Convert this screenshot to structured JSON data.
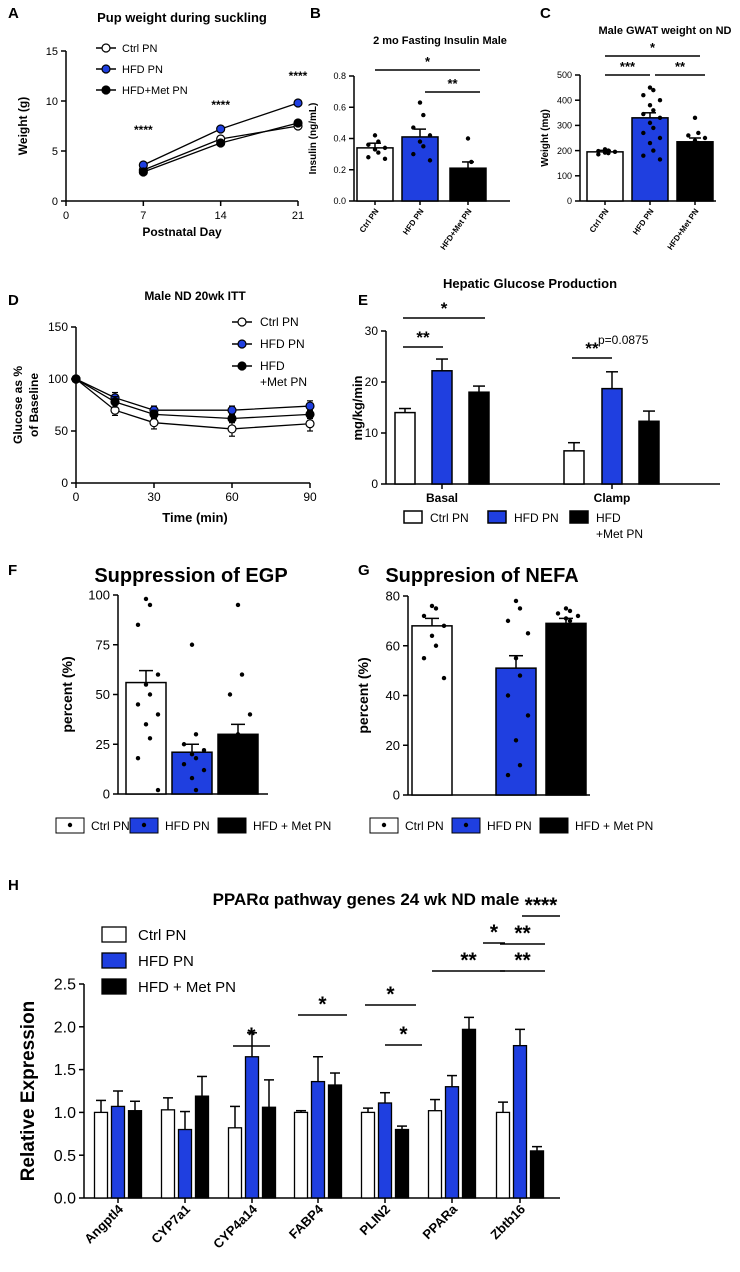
{
  "colors": {
    "ctrl": "#ffffff",
    "hfd": "#1f3fe0",
    "met": "#000000"
  },
  "chart_data": [
    {
      "panel": "A",
      "type": "line",
      "title": "Pup weight during suckling",
      "xlabel": "Postnatal Day",
      "ylabel": "Weight (g)",
      "xlim": [
        0,
        21
      ],
      "ylim": [
        0,
        15
      ],
      "xticks": [
        0,
        7,
        14,
        21
      ],
      "yticks": [
        0,
        5,
        10,
        15
      ],
      "x": [
        7,
        14,
        21
      ],
      "series": [
        {
          "name": "Ctrl PN",
          "values": [
            3.1,
            6.2,
            7.5
          ]
        },
        {
          "name": "HFD PN",
          "values": [
            3.6,
            7.2,
            9.8
          ]
        },
        {
          "name": "HFD+Met PN",
          "values": [
            2.9,
            5.8,
            7.8
          ]
        }
      ],
      "legend": [
        "Ctrl PN",
        "HFD PN",
        "HFD+Met PN"
      ],
      "annotations": [
        "****",
        "****",
        "****"
      ]
    },
    {
      "panel": "B",
      "type": "bar",
      "title": "2 mo Fasting Insulin Male",
      "ylabel": "Insulin (ng/mL)",
      "ylim": [
        0,
        0.8
      ],
      "yticks": [
        0.0,
        0.2,
        0.4,
        0.6,
        0.8
      ],
      "categories": [
        "Ctrl PN",
        "HFD PN",
        "HFD+Met PN"
      ],
      "values": [
        0.34,
        0.41,
        0.21
      ],
      "errors": [
        0.03,
        0.05,
        0.04
      ],
      "points": [
        [
          0.42,
          0.38,
          0.36,
          0.34,
          0.33,
          0.31,
          0.28,
          0.27
        ],
        [
          0.63,
          0.55,
          0.47,
          0.42,
          0.38,
          0.35,
          0.3,
          0.26
        ],
        [
          0.4,
          0.25,
          0.15,
          0.1,
          0.08
        ]
      ],
      "significance": [
        "*",
        "**"
      ]
    },
    {
      "panel": "C",
      "type": "bar",
      "title": "Male GWAT weight on ND",
      "ylabel": "Weight (mg)",
      "ylim": [
        0,
        500
      ],
      "yticks": [
        0,
        100,
        200,
        300,
        400,
        500
      ],
      "categories": [
        "Ctrl PN",
        "HFD PN",
        "HFD+Met PN"
      ],
      "values": [
        195,
        330,
        235
      ],
      "errors": [
        6,
        20,
        15
      ],
      "points": [
        [
          205,
          200,
          198,
          195,
          192,
          190,
          185
        ],
        [
          450,
          440,
          420,
          400,
          380,
          360,
          345,
          330,
          310,
          290,
          270,
          250,
          230,
          200,
          180,
          165
        ],
        [
          330,
          270,
          260,
          250,
          240,
          230,
          220,
          210
        ]
      ],
      "significance": [
        "*",
        "***",
        "**"
      ]
    },
    {
      "panel": "D",
      "type": "line",
      "title": "Male ND 20wk ITT",
      "xlabel": "Time (min)",
      "ylabel": [
        "Glucose as %",
        "of Baseline"
      ],
      "xlim": [
        0,
        90
      ],
      "ylim": [
        0,
        150
      ],
      "xticks": [
        0,
        30,
        60,
        90
      ],
      "yticks": [
        0,
        50,
        100,
        150
      ],
      "x": [
        0,
        15,
        30,
        60,
        90
      ],
      "series": [
        {
          "name": "Ctrl PN",
          "values": [
            100,
            70,
            58,
            52,
            57
          ],
          "errors": [
            0,
            5,
            6,
            7,
            7
          ]
        },
        {
          "name": "HFD PN",
          "values": [
            100,
            82,
            70,
            70,
            74
          ],
          "errors": [
            0,
            5,
            4,
            4,
            5
          ]
        },
        {
          "name": "HFD +Met PN",
          "values": [
            100,
            78,
            66,
            62,
            66
          ],
          "errors": [
            0,
            5,
            4,
            4,
            4
          ]
        }
      ],
      "legend": [
        "Ctrl PN",
        "HFD PN",
        "HFD",
        "+Met PN"
      ]
    },
    {
      "panel": "E",
      "type": "bar",
      "title": "Hepatic Glucose Production",
      "ylabel": "mg/kg/min",
      "ylim": [
        0,
        30
      ],
      "yticks": [
        0,
        10,
        20,
        30
      ],
      "categories": [
        "Basal",
        "Clamp"
      ],
      "series": [
        {
          "name": "Ctrl PN",
          "values": [
            14.0,
            6.5
          ],
          "errors": [
            0.8,
            1.6
          ]
        },
        {
          "name": "HFD PN",
          "values": [
            22.2,
            18.7
          ],
          "errors": [
            2.3,
            3.3
          ]
        },
        {
          "name": "HFD +Met PN",
          "values": [
            18.0,
            12.3
          ],
          "errors": [
            1.2,
            2.0
          ]
        }
      ],
      "legend": [
        "Ctrl PN",
        "HFD PN",
        "HFD",
        "+Met PN"
      ],
      "significance": [
        "**",
        "*",
        "**"
      ],
      "annotation": "p=0.0875"
    },
    {
      "panel": "F",
      "type": "bar",
      "title": "Suppression of EGP",
      "ylabel": "percent (%)",
      "ylim": [
        0,
        100
      ],
      "yticks": [
        0,
        25,
        50,
        75,
        100
      ],
      "categories": [
        "Ctrl PN",
        "HFD PN",
        "HFD + Met PN"
      ],
      "values": [
        56,
        21,
        30
      ],
      "errors": [
        6,
        4,
        5
      ],
      "points": [
        [
          98,
          95,
          85,
          60,
          55,
          50,
          45,
          40,
          35,
          28,
          18,
          2
        ],
        [
          75,
          30,
          25,
          22,
          20,
          18,
          15,
          12,
          8,
          2
        ],
        [
          95,
          60,
          50,
          40,
          30,
          25
        ]
      ],
      "legend": [
        "Ctrl PN",
        "HFD PN",
        "HFD + Met PN"
      ]
    },
    {
      "panel": "G",
      "type": "bar",
      "title": "Suppresion of NEFA",
      "ylabel": "percent (%)",
      "ylim": [
        0,
        80
      ],
      "yticks": [
        0,
        20,
        40,
        60,
        80
      ],
      "categories": [
        "Ctrl PN",
        "HFD PN",
        "HFD + Met PN"
      ],
      "values": [
        68,
        51,
        69
      ],
      "errors": [
        3,
        5,
        2
      ],
      "points": [
        [
          76,
          75,
          72,
          68,
          64,
          60,
          55,
          47
        ],
        [
          78,
          75,
          70,
          65,
          55,
          48,
          40,
          32,
          22,
          12,
          8
        ],
        [
          75,
          74,
          73,
          72,
          71,
          70
        ]
      ],
      "legend": [
        "Ctrl PN",
        "HFD PN",
        "HFD + Met PN"
      ]
    },
    {
      "panel": "H",
      "type": "bar",
      "title": "PPARα pathway genes 24 wk ND male",
      "ylabel": "Relative Expression",
      "ylim": [
        0,
        2.5
      ],
      "yticks": [
        0.0,
        0.5,
        1.0,
        1.5,
        2.0,
        2.5
      ],
      "categories": [
        "Angptl4",
        "CYP7a1",
        "CYP4a14",
        "FABP4",
        "PLIN2",
        "PPARa",
        "Zbtb16"
      ],
      "series": [
        {
          "name": "Ctrl PN",
          "values": [
            1.0,
            1.03,
            0.82,
            1.0,
            1.0,
            1.02,
            1.0
          ],
          "errors": [
            0.14,
            0.14,
            0.25,
            0.02,
            0.05,
            0.13,
            0.12
          ]
        },
        {
          "name": "HFD PN",
          "values": [
            1.07,
            0.8,
            1.65,
            1.36,
            1.11,
            1.3,
            1.78
          ],
          "errors": [
            0.18,
            0.21,
            0.28,
            0.29,
            0.12,
            0.13,
            0.19
          ]
        },
        {
          "name": "HFD + Met PN",
          "values": [
            1.02,
            1.19,
            1.06,
            1.32,
            0.8,
            1.97,
            0.55
          ],
          "errors": [
            0.11,
            0.23,
            0.32,
            0.14,
            0.04,
            0.14,
            0.05
          ]
        }
      ],
      "legend": [
        "Ctrl PN",
        "HFD PN",
        "HFD + Met PN"
      ],
      "significance": [
        "*",
        "*",
        "*",
        "*",
        "*",
        "**",
        "**",
        "**",
        "****"
      ]
    }
  ],
  "panel_letters": [
    "A",
    "B",
    "C",
    "D",
    "E",
    "F",
    "G",
    "H"
  ]
}
